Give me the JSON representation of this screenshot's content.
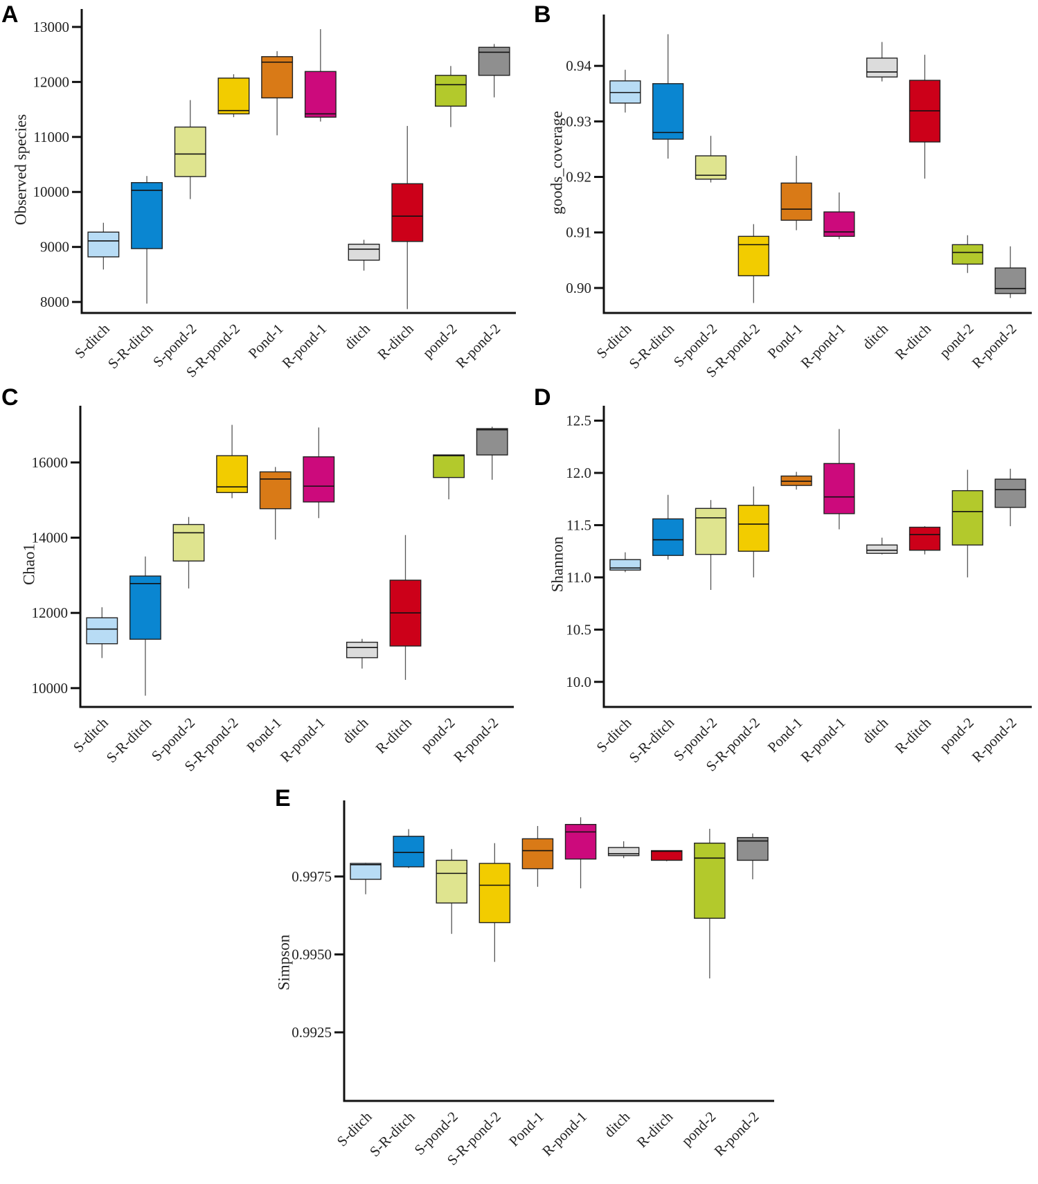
{
  "figure": {
    "categories": [
      "S-ditch",
      "S-R-ditch",
      "S-pond-2",
      "S-R-pond-2",
      "Pond-1",
      "R-pond-1",
      "ditch",
      "R-ditch",
      "pond-2",
      "R-pond-2"
    ],
    "colors": [
      "#b8dcf5",
      "#0a86d1",
      "#dfe48f",
      "#f2cc00",
      "#d97a17",
      "#cc0a7c",
      "#dcdcdc",
      "#cc0019",
      "#b3c92c",
      "#8f8f8f"
    ]
  },
  "chart_data": [
    {
      "id": "A",
      "type": "box",
      "letter": "A",
      "ylabel": "Observed species",
      "ylim": [
        7800,
        13150
      ],
      "yticks": [
        8000,
        9000,
        10000,
        11000,
        12000,
        13000
      ],
      "tick_labels": [
        "8000",
        "9000",
        "10000",
        "11000",
        "12000",
        "13000"
      ],
      "categories": [
        "S-ditch",
        "S-R-ditch",
        "S-pond-2",
        "S-R-pond-2",
        "Pond-1",
        "R-pond-1",
        "ditch",
        "R-ditch",
        "pond-2",
        "R-pond-2"
      ],
      "boxes": [
        {
          "min": 8590,
          "q1": 8820,
          "median": 9110,
          "q3": 9270,
          "max": 9440
        },
        {
          "min": 7970,
          "q1": 8970,
          "median": 10030,
          "q3": 10170,
          "max": 10290
        },
        {
          "min": 9870,
          "q1": 10280,
          "median": 10690,
          "q3": 11180,
          "max": 11670
        },
        {
          "min": 11360,
          "q1": 11420,
          "median": 11480,
          "q3": 12070,
          "max": 12140
        },
        {
          "min": 11030,
          "q1": 11710,
          "median": 12360,
          "q3": 12460,
          "max": 12560
        },
        {
          "min": 11280,
          "q1": 11360,
          "median": 11420,
          "q3": 12190,
          "max": 12960
        },
        {
          "min": 8570,
          "q1": 8760,
          "median": 8960,
          "q3": 9050,
          "max": 9130
        },
        {
          "min": 7870,
          "q1": 9100,
          "median": 9560,
          "q3": 10150,
          "max": 11200
        },
        {
          "min": 11180,
          "q1": 11560,
          "median": 11950,
          "q3": 12120,
          "max": 12290
        },
        {
          "min": 11720,
          "q1": 12120,
          "median": 12540,
          "q3": 12630,
          "max": 12690
        }
      ]
    },
    {
      "id": "B",
      "type": "box",
      "letter": "B",
      "ylabel": "goods_coverage",
      "ylim": [
        0.8955,
        0.9475
      ],
      "yticks": [
        0.9,
        0.91,
        0.92,
        0.93,
        0.94
      ],
      "tick_labels": [
        "0.90",
        "0.91",
        "0.92",
        "0.93",
        "0.94"
      ],
      "categories": [
        "S-ditch",
        "S-R-ditch",
        "S-pond-2",
        "S-R-pond-2",
        "Pond-1",
        "R-pond-1",
        "ditch",
        "R-ditch",
        "pond-2",
        "R-pond-2"
      ],
      "boxes": [
        {
          "min": 0.9316,
          "q1": 0.9333,
          "median": 0.9352,
          "q3": 0.9373,
          "max": 0.9393
        },
        {
          "min": 0.9233,
          "q1": 0.9268,
          "median": 0.928,
          "q3": 0.9368,
          "max": 0.9457
        },
        {
          "min": 0.919,
          "q1": 0.9196,
          "median": 0.9203,
          "q3": 0.9238,
          "max": 0.9274
        },
        {
          "min": 0.8973,
          "q1": 0.9022,
          "median": 0.9078,
          "q3": 0.9093,
          "max": 0.9115
        },
        {
          "min": 0.9104,
          "q1": 0.9122,
          "median": 0.9142,
          "q3": 0.9189,
          "max": 0.9238
        },
        {
          "min": 0.9088,
          "q1": 0.9093,
          "median": 0.9101,
          "q3": 0.9137,
          "max": 0.9172
        },
        {
          "min": 0.9372,
          "q1": 0.938,
          "median": 0.9389,
          "q3": 0.9414,
          "max": 0.9443
        },
        {
          "min": 0.9197,
          "q1": 0.9263,
          "median": 0.9319,
          "q3": 0.9374,
          "max": 0.942
        },
        {
          "min": 0.9027,
          "q1": 0.9043,
          "median": 0.9064,
          "q3": 0.9078,
          "max": 0.9095
        },
        {
          "min": 0.8982,
          "q1": 0.899,
          "median": 0.8999,
          "q3": 0.9036,
          "max": 0.9075
        }
      ]
    },
    {
      "id": "C",
      "type": "box",
      "letter": "C",
      "ylabel": "Chao1",
      "ylim": [
        9500,
        17250
      ],
      "yticks": [
        10000,
        12000,
        14000,
        16000
      ],
      "tick_labels": [
        "10000",
        "12000",
        "14000",
        "16000"
      ],
      "categories": [
        "S-ditch",
        "S-R-ditch",
        "S-pond-2",
        "S-R-pond-2",
        "Pond-1",
        "R-pond-1",
        "ditch",
        "R-ditch",
        "pond-2",
        "R-pond-2"
      ],
      "boxes": [
        {
          "min": 10800,
          "q1": 11180,
          "median": 11570,
          "q3": 11870,
          "max": 12150
        },
        {
          "min": 9800,
          "q1": 11300,
          "median": 12780,
          "q3": 12980,
          "max": 13500
        },
        {
          "min": 12650,
          "q1": 13380,
          "median": 14130,
          "q3": 14350,
          "max": 14550
        },
        {
          "min": 15050,
          "q1": 15200,
          "median": 15350,
          "q3": 16180,
          "max": 17000
        },
        {
          "min": 13950,
          "q1": 14770,
          "median": 15560,
          "q3": 15750,
          "max": 15880
        },
        {
          "min": 14520,
          "q1": 14950,
          "median": 15370,
          "q3": 16150,
          "max": 16930
        },
        {
          "min": 10520,
          "q1": 10810,
          "median": 11080,
          "q3": 11220,
          "max": 11310
        },
        {
          "min": 10220,
          "q1": 11120,
          "median": 12000,
          "q3": 12870,
          "max": 14070
        },
        {
          "min": 15020,
          "q1": 15600,
          "median": 16180,
          "q3": 16200,
          "max": 16210
        },
        {
          "min": 15540,
          "q1": 16200,
          "median": 16870,
          "q3": 16900,
          "max": 16950
        }
      ]
    },
    {
      "id": "D",
      "type": "box",
      "letter": "D",
      "ylabel": "Shannon",
      "ylim": [
        9.76,
        12.55
      ],
      "yticks": [
        10.0,
        10.5,
        11.0,
        11.5,
        12.0,
        12.5
      ],
      "tick_labels": [
        "10.0",
        "10.5",
        "11.0",
        "11.5",
        "12.0",
        "12.5"
      ],
      "categories": [
        "S-ditch",
        "S-R-ditch",
        "S-pond-2",
        "S-R-pond-2",
        "Pond-1",
        "R-pond-1",
        "ditch",
        "R-ditch",
        "pond-2",
        "R-pond-2"
      ],
      "boxes": [
        {
          "min": 11.05,
          "q1": 11.07,
          "median": 11.09,
          "q3": 11.17,
          "max": 11.24
        },
        {
          "min": 11.17,
          "q1": 11.21,
          "median": 11.36,
          "q3": 11.56,
          "max": 11.79
        },
        {
          "min": 10.88,
          "q1": 11.22,
          "median": 11.57,
          "q3": 11.66,
          "max": 11.74
        },
        {
          "min": 11.0,
          "q1": 11.25,
          "median": 11.51,
          "q3": 11.69,
          "max": 11.87
        },
        {
          "min": 11.84,
          "q1": 11.88,
          "median": 11.92,
          "q3": 11.97,
          "max": 12.01
        },
        {
          "min": 11.46,
          "q1": 11.61,
          "median": 11.77,
          "q3": 12.09,
          "max": 12.42
        },
        {
          "min": 11.22,
          "q1": 11.23,
          "median": 11.26,
          "q3": 11.31,
          "max": 11.38
        },
        {
          "min": 11.22,
          "q1": 11.26,
          "median": 11.41,
          "q3": 11.48,
          "max": 11.49
        },
        {
          "min": 11.0,
          "q1": 11.31,
          "median": 11.63,
          "q3": 11.83,
          "max": 12.03
        },
        {
          "min": 11.49,
          "q1": 11.67,
          "median": 11.84,
          "q3": 11.94,
          "max": 12.04
        }
      ]
    },
    {
      "id": "E",
      "type": "box",
      "letter": "E",
      "ylabel": "Simpson",
      "ylim": [
        0.9903,
        0.99963
      ],
      "yticks": [
        0.9925,
        0.995,
        0.9975
      ],
      "tick_labels": [
        "0.9925",
        "0.9950",
        "0.9975"
      ],
      "categories": [
        "S-ditch",
        "S-R-ditch",
        "S-pond-2",
        "S-R-pond-2",
        "Pond-1",
        "R-pond-1",
        "ditch",
        "R-ditch",
        "pond-2",
        "R-pond-2"
      ],
      "boxes": [
        {
          "min": 0.99693,
          "q1": 0.99741,
          "median": 0.99788,
          "q3": 0.99792,
          "max": 0.99794
        },
        {
          "min": 0.99777,
          "q1": 0.99781,
          "median": 0.99827,
          "q3": 0.99879,
          "max": 0.99902
        },
        {
          "min": 0.99566,
          "q1": 0.99665,
          "median": 0.9976,
          "q3": 0.99802,
          "max": 0.99838
        },
        {
          "min": 0.99476,
          "q1": 0.99602,
          "median": 0.99722,
          "q3": 0.99792,
          "max": 0.99857
        },
        {
          "min": 0.99717,
          "q1": 0.99775,
          "median": 0.99833,
          "q3": 0.99871,
          "max": 0.99912
        },
        {
          "min": 0.99712,
          "q1": 0.99806,
          "median": 0.99893,
          "q3": 0.99917,
          "max": 0.9994
        },
        {
          "min": 0.99809,
          "q1": 0.99817,
          "median": 0.99823,
          "q3": 0.99843,
          "max": 0.99863
        },
        {
          "min": 0.99799,
          "q1": 0.99802,
          "median": 0.99831,
          "q3": 0.99833,
          "max": 0.99833
        },
        {
          "min": 0.99423,
          "q1": 0.99616,
          "median": 0.99809,
          "q3": 0.99857,
          "max": 0.99903
        },
        {
          "min": 0.99741,
          "q1": 0.99802,
          "median": 0.99864,
          "q3": 0.99875,
          "max": 0.99888
        }
      ]
    }
  ]
}
